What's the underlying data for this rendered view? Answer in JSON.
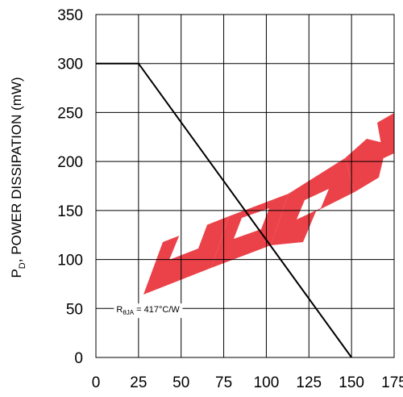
{
  "chart_data": {
    "type": "line",
    "x": [
      0,
      25,
      150
    ],
    "series": [
      {
        "values": [
          300,
          300,
          0
        ],
        "color": "#000000"
      }
    ],
    "xlim": [
      0,
      175
    ],
    "ylim": [
      0,
      350
    ],
    "xticks": [
      "0",
      "25",
      "50",
      "75",
      "100",
      "125",
      "150",
      "175"
    ],
    "yticks": [
      "0",
      "50",
      "100",
      "150",
      "200",
      "250",
      "300",
      "350"
    ],
    "ylabel": {
      "main": "P",
      "sub": "D",
      "rest": ", POWER DISSIPATION (mW)"
    },
    "xlabel": "",
    "grid": true,
    "annotation": {
      "main": "R",
      "sub": "θJA",
      "rest": " = 417°C/W",
      "x": 12,
      "y": 46
    },
    "watermark": {
      "color": "#e8222a"
    }
  }
}
